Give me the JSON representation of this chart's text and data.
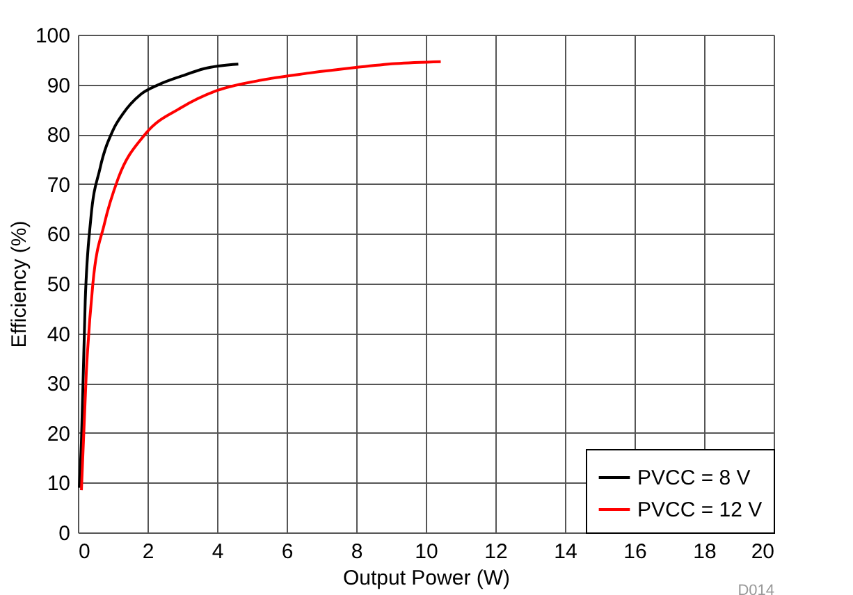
{
  "chart_data": {
    "type": "line",
    "xlabel": "Output Power (W)",
    "ylabel": "Efficiency (%)",
    "xlim": [
      0,
      20
    ],
    "xticks": [
      0,
      2,
      4,
      6,
      8,
      10,
      12,
      14,
      16,
      18,
      20
    ],
    "ylim": [
      0,
      100
    ],
    "yticks": [
      0,
      10,
      20,
      30,
      40,
      50,
      60,
      70,
      80,
      90,
      100
    ],
    "grid": true,
    "legend": "bottom right",
    "line_style": "solid",
    "marker": "none",
    "annotations": [
      "D014"
    ],
    "series": [
      {
        "name": "PVCC = 8 V",
        "color": "#000000",
        "x": [
          0.04,
          0.1,
          0.21,
          0.37,
          0.63,
          1.02,
          1.28,
          1.8,
          2.33,
          2.98,
          3.63,
          4.61
        ],
        "values": [
          9,
          18,
          46.5,
          63,
          73,
          81,
          84,
          88,
          90,
          91.7,
          93.2,
          94.1
        ]
      },
      {
        "name": "PVCC = 12 V",
        "color": "#ff0000",
        "x": [
          0.1,
          0.24,
          0.43,
          0.76,
          1.15,
          1.93,
          2.98,
          3.96,
          5.2,
          6.64,
          7.95,
          9.12,
          10.43
        ],
        "values": [
          8.5,
          32,
          50,
          62,
          71,
          80,
          85.4,
          88.7,
          90.8,
          92.3,
          93.4,
          94.2,
          94.6
        ]
      }
    ]
  }
}
